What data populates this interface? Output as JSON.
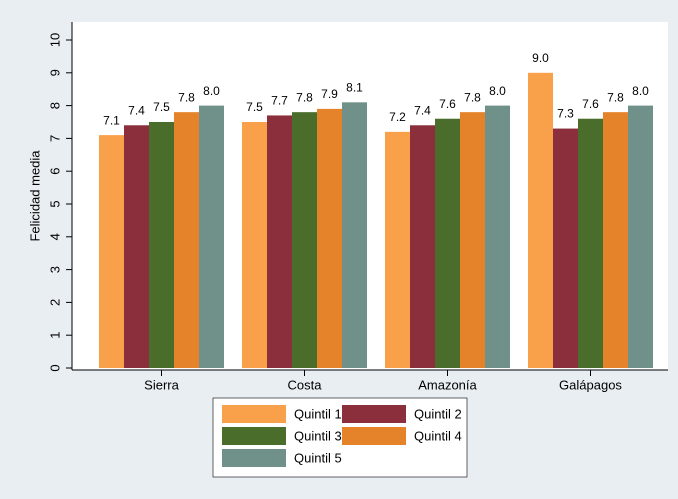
{
  "chart_data": {
    "type": "bar",
    "y_label": "Felicidad media",
    "categories": [
      "Sierra",
      "Costa",
      "Amazonía",
      "Galápagos"
    ],
    "series": [
      {
        "name": "Quintil 1",
        "color": "#f9a04a",
        "values": [
          7.1,
          7.5,
          7.2,
          9.0
        ],
        "value_labels": [
          "7.1",
          "7.5",
          "7.2",
          "9.0"
        ]
      },
      {
        "name": "Quintil 2",
        "color": "#8a2f3b",
        "values": [
          7.4,
          7.7,
          7.4,
          7.3
        ],
        "value_labels": [
          "7.4",
          "7.7",
          "7.4",
          "7.3"
        ]
      },
      {
        "name": "Quintil 3",
        "color": "#4b6d2c",
        "values": [
          7.5,
          7.8,
          7.6,
          7.6
        ],
        "value_labels": [
          "7.5",
          "7.8",
          "7.6",
          "7.6"
        ]
      },
      {
        "name": "Quintil 4",
        "color": "#e5832b",
        "values": [
          7.8,
          7.9,
          7.8,
          7.8
        ],
        "value_labels": [
          "7.8",
          "7.9",
          "7.8",
          "7.8"
        ]
      },
      {
        "name": "Quintil 5",
        "color": "#6f9189",
        "values": [
          8.0,
          8.1,
          8.0,
          8.0
        ],
        "value_labels": [
          "8.0",
          "8.1",
          "8.0",
          "8.0"
        ]
      }
    ],
    "ylim": [
      0,
      10
    ],
    "yticks": [
      0,
      1,
      2,
      3,
      4,
      5,
      6,
      7,
      8,
      9,
      10
    ],
    "grid": false
  }
}
